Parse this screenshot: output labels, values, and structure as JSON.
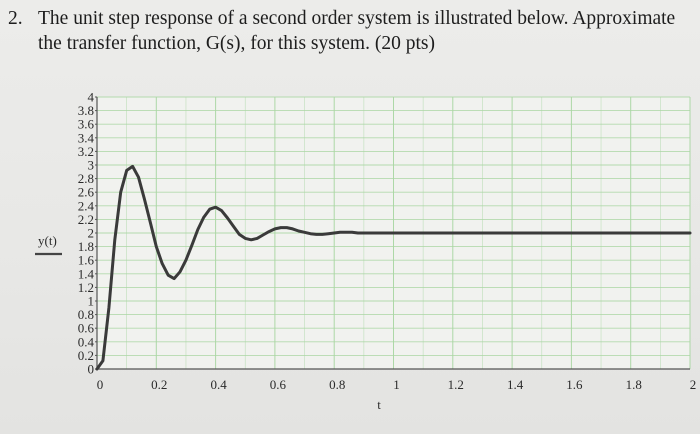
{
  "question": {
    "number": "2.",
    "line1": "The unit step response of a second order system is illustrated below.  Approximate",
    "line2": "the transfer function, G(s), for this system. (20 pts)"
  },
  "chart_data": {
    "type": "line",
    "xlabel": "t",
    "ylabel": "y(t)",
    "xlim": [
      0,
      2
    ],
    "ylim": [
      0,
      4
    ],
    "x_ticks": [
      "0",
      "0.2",
      "0.4",
      "0.6",
      "0.8",
      "1",
      "1.2",
      "1.4",
      "1.6",
      "1.8",
      "2"
    ],
    "y_ticks": [
      "0",
      "0.2",
      "0.4",
      "0.6",
      "0.8",
      "1",
      "1.2",
      "1.4",
      "1.6",
      "1.8",
      "2",
      "2.2",
      "2.4",
      "2.6",
      "2.8",
      "3",
      "3.2",
      "3.4",
      "3.6",
      "3.8",
      "4"
    ],
    "grid": true,
    "colors": {
      "line": "#3a3a3a",
      "grid": "#a9d6a2",
      "axes": "#555555"
    },
    "series": [
      {
        "x": [
          0,
          0.02,
          0.04,
          0.06,
          0.08,
          0.1,
          0.12,
          0.14,
          0.16,
          0.18,
          0.2,
          0.22,
          0.24,
          0.26,
          0.28,
          0.3,
          0.32,
          0.34,
          0.36,
          0.38,
          0.4,
          0.42,
          0.44,
          0.46,
          0.48,
          0.5,
          0.52,
          0.54,
          0.56,
          0.58,
          0.6,
          0.62,
          0.64,
          0.66,
          0.68,
          0.7,
          0.72,
          0.74,
          0.76,
          0.78,
          0.8,
          0.82,
          0.84,
          0.86,
          0.88,
          0.9,
          0.92,
          0.94,
          0.96,
          0.98,
          1.0,
          1.02,
          1.04,
          1.06,
          1.08,
          1.1,
          1.12,
          1.14,
          1.16,
          1.18,
          1.2,
          1.25,
          1.3,
          1.4,
          1.5,
          1.6,
          1.7,
          1.8,
          1.9,
          2.0
        ],
        "y": [
          0,
          0.12,
          0.9,
          1.9,
          2.6,
          2.92,
          2.98,
          2.82,
          2.5,
          2.15,
          1.8,
          1.55,
          1.38,
          1.33,
          1.43,
          1.6,
          1.82,
          2.05,
          2.23,
          2.35,
          2.38,
          2.33,
          2.22,
          2.1,
          1.98,
          1.92,
          1.9,
          1.92,
          1.97,
          2.02,
          2.06,
          2.08,
          2.08,
          2.06,
          2.03,
          2.01,
          1.99,
          1.98,
          1.98,
          1.99,
          2.0,
          2.01,
          2.01,
          2.01,
          2.0,
          2.0,
          2.0,
          2.0,
          2.0,
          2.0,
          2.0,
          2.0,
          2.0,
          2.0,
          2.0,
          2.0,
          2.0,
          2.0,
          2.0,
          2.0,
          2.0,
          2.0,
          2.0,
          2.0,
          2.0,
          2.0,
          2.0,
          2.0,
          2.0,
          2.0
        ]
      }
    ]
  }
}
